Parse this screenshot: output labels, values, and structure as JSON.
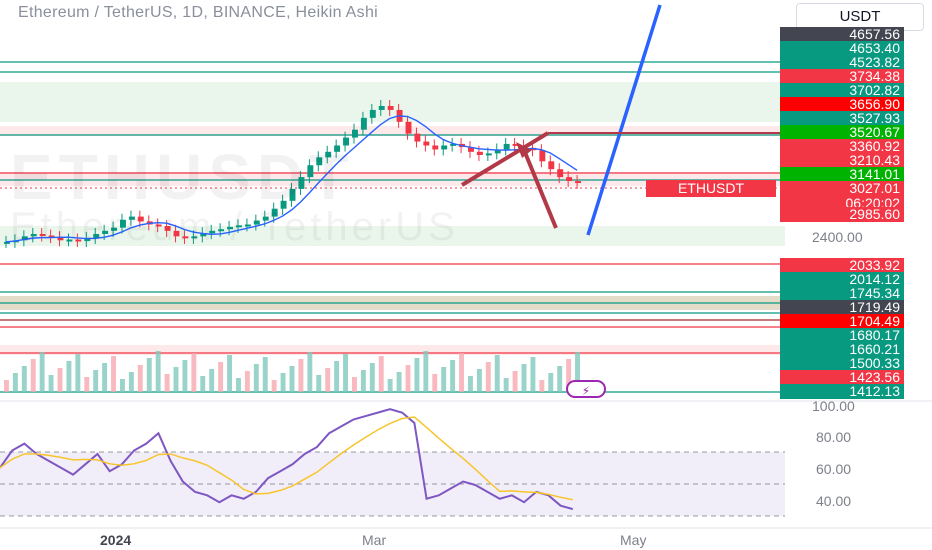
{
  "chart_title": "Ethereum / TetherUS, 1D, BINANCE, Heikin Ashi",
  "currency_button": "USDT",
  "watermark_line1": "ETHUSDT",
  "watermark_line2": "Ethereum / TetherUS",
  "symbol_label": "ETHUSDT",
  "countdown": "06:20:02",
  "colors": {
    "up": "#089981",
    "down": "#f23645",
    "line": "#2962ff",
    "rsi": "#7e57c2",
    "rsi_ma": "#f7c52b"
  },
  "icons": {
    "lightning": "lightning-icon"
  },
  "price_labels": [
    {
      "text": "4657.56",
      "color": "#434651"
    },
    {
      "text": "4653.40",
      "color": "#089981"
    },
    {
      "text": "4523.82",
      "color": "#089981"
    },
    {
      "text": "3734.38",
      "color": "#f23645"
    },
    {
      "text": "3702.82",
      "color": "#089981"
    },
    {
      "text": "3656.90",
      "color": "#ff0000"
    },
    {
      "text": "3527.93",
      "color": "#089981"
    },
    {
      "text": "3520.67",
      "color": "#00b300"
    },
    {
      "text": "3360.92",
      "color": "#f23645"
    },
    {
      "text": "3210.43",
      "color": "#f23645"
    },
    {
      "text": "3141.01",
      "color": "#00b300"
    },
    {
      "text": "3027.01",
      "color": "#f23645"
    },
    {
      "text": "2985.60",
      "color": "#f23645"
    },
    {
      "text": "2033.92",
      "color": "#f23645"
    },
    {
      "text": "2014.12",
      "color": "#089981"
    },
    {
      "text": "1745.34",
      "color": "#089981"
    },
    {
      "text": "1719.49",
      "color": "#434651"
    },
    {
      "text": "1704.49",
      "color": "#ff0000"
    },
    {
      "text": "1680.17",
      "color": "#089981"
    },
    {
      "text": "1660.21",
      "color": "#089981"
    },
    {
      "text": "1500.33",
      "color": "#089981"
    },
    {
      "text": "1423.56",
      "color": "#f23645"
    },
    {
      "text": "1412.13",
      "color": "#089981"
    }
  ],
  "axis_price": "2400.00",
  "rsi_axis": [
    "100.00",
    "80.00",
    "60.00",
    "40.00"
  ],
  "time_axis": [
    "2024",
    "Mar",
    "May"
  ],
  "chart_data": {
    "type": "candlestick",
    "title": "Ethereum / TetherUS, 1D, BINANCE, Heikin Ashi",
    "current_price": 3027.01,
    "price_levels": [
      4657.56,
      4653.4,
      4523.82,
      3734.38,
      3702.82,
      3656.9,
      3527.93,
      3520.67,
      3360.92,
      3210.43,
      3141.01,
      3027.01,
      2985.6,
      2400.0,
      2033.92,
      2014.12,
      1745.34,
      1719.49,
      1704.49,
      1680.17,
      1660.21,
      1500.33,
      1423.56,
      1412.13
    ],
    "close_series": [
      2280,
      2300,
      2350,
      2380,
      2360,
      2340,
      2300,
      2310,
      2290,
      2330,
      2380,
      2420,
      2460,
      2560,
      2600,
      2540,
      2500,
      2480,
      2420,
      2350,
      2330,
      2350,
      2390,
      2420,
      2440,
      2470,
      2490,
      2500,
      2550,
      2600,
      2700,
      2800,
      2950,
      3100,
      3250,
      3350,
      3420,
      3500,
      3600,
      3700,
      3850,
      3950,
      4000,
      3950,
      3800,
      3650,
      3550,
      3500,
      3450,
      3500,
      3520,
      3480,
      3420,
      3380,
      3400,
      3450,
      3520,
      3500,
      3470,
      3440,
      3300,
      3200,
      3100,
      3050,
      3027
    ],
    "rsi": [
      58,
      68,
      72,
      66,
      62,
      58,
      54,
      60,
      66,
      56,
      60,
      68,
      72,
      78,
      62,
      50,
      44,
      42,
      38,
      42,
      40,
      44,
      52,
      56,
      60,
      66,
      70,
      78,
      82,
      86,
      88,
      90,
      92,
      90,
      84,
      40,
      42,
      46,
      50,
      48,
      44,
      40,
      42,
      38,
      44,
      42,
      36,
      34
    ],
    "rsi_range": [
      0,
      100
    ],
    "x_ticks": [
      "2024",
      "Mar",
      "May"
    ]
  }
}
